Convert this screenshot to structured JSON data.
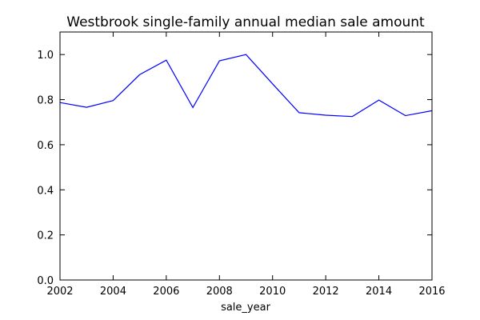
{
  "chart_data": {
    "type": "line",
    "title": "Westbrook single-family annual median sale amount",
    "xlabel": "sale_year",
    "ylabel": "",
    "xlim": [
      2002,
      2016
    ],
    "ylim": [
      0.0,
      1.1
    ],
    "xticks": [
      2002,
      2004,
      2006,
      2008,
      2010,
      2012,
      2014,
      2016
    ],
    "xtick_labels": [
      "2002",
      "2004",
      "2006",
      "2008",
      "2010",
      "2012",
      "2014",
      "2016"
    ],
    "yticks": [
      0.0,
      0.2,
      0.4,
      0.6,
      0.8,
      1.0
    ],
    "ytick_labels": [
      "0.0",
      "0.2",
      "0.4",
      "0.6",
      "0.8",
      "1.0"
    ],
    "grid": false,
    "legend": "none",
    "line_color": "#0000ff",
    "series": [
      {
        "x": [
          2002,
          2003,
          2004,
          2005,
          2006,
          2007,
          2008,
          2009,
          2010,
          2011,
          2012,
          2013,
          2014,
          2015,
          2016
        ],
        "y": [
          0.787,
          0.766,
          0.796,
          0.911,
          0.975,
          0.765,
          0.972,
          1.0,
          0.87,
          0.742,
          0.731,
          0.725,
          0.798,
          0.729,
          0.751
        ]
      }
    ]
  }
}
